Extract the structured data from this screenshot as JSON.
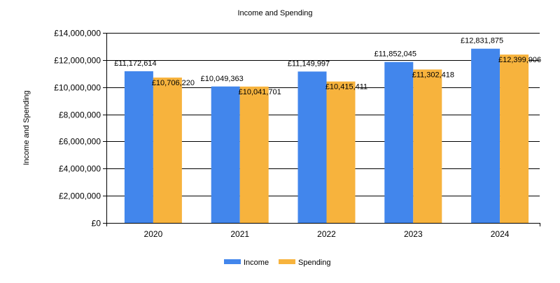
{
  "chart_data": {
    "type": "bar",
    "title": "Income and Spending",
    "xlabel": "",
    "ylabel": "Income and Spending",
    "categories": [
      "2020",
      "2021",
      "2022",
      "2023",
      "2024"
    ],
    "series": [
      {
        "name": "Income",
        "color": "#4286ec",
        "values": [
          11172614,
          10049363,
          11149997,
          11852045,
          12831875
        ],
        "labels": [
          "£11,172,614",
          "£10,049,363",
          "£11,149,997",
          "£11,852,045",
          "£12,831,875"
        ]
      },
      {
        "name": "Spending",
        "color": "#f7b33d",
        "values": [
          10706220,
          10041701,
          10415411,
          11302418,
          12399906
        ],
        "labels": [
          "£10,706,220",
          "£10,041,701",
          "£10,415,411",
          "£11,302,418",
          "£12,399,906"
        ]
      }
    ],
    "ylim": [
      0,
      14000000
    ],
    "yticks": [
      0,
      2000000,
      4000000,
      6000000,
      8000000,
      10000000,
      12000000,
      14000000
    ],
    "ytick_labels": [
      "£0",
      "£2,000,000",
      "£4,000,000",
      "£6,000,000",
      "£8,000,000",
      "£10,000,000",
      "£12,000,000",
      "£14,000,000"
    ],
    "grid": true,
    "legend_position": "bottom"
  }
}
